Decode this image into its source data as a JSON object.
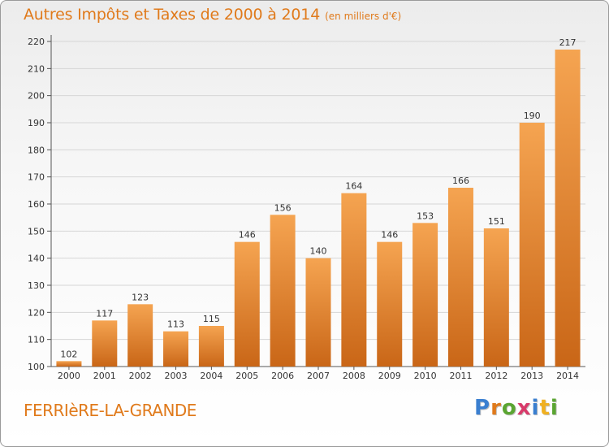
{
  "title": {
    "main": "Autres Impôts et Taxes de 2000 à 2014",
    "unit": "(en milliers d'€)"
  },
  "place_name": "FERRIèRE-LA-GRANDE",
  "logo": {
    "letters": [
      "P",
      "r",
      "o",
      "x",
      "i",
      "t",
      "i"
    ],
    "colors": [
      "#3a7fd0",
      "#e07a1b",
      "#5aa531",
      "#d83a6a",
      "#3a7fd0",
      "#f0b020",
      "#5aa531"
    ]
  },
  "colors": {
    "accent": "#e07a1b",
    "bar_top": "#f5a451",
    "bar_bottom": "#c96617",
    "grid": "#d6d6d6"
  },
  "chart_data": {
    "type": "bar",
    "title": "Autres Impôts et Taxes de 2000 à 2014",
    "subtitle": "(en milliers d'€)",
    "categories": [
      "2000",
      "2001",
      "2002",
      "2003",
      "2004",
      "2005",
      "2006",
      "2007",
      "2008",
      "2009",
      "2010",
      "2011",
      "2012",
      "2013",
      "2014"
    ],
    "values": [
      102,
      117,
      123,
      113,
      115,
      146,
      156,
      140,
      164,
      146,
      153,
      166,
      151,
      190,
      217
    ],
    "ylim": [
      100,
      220
    ],
    "yticks": [
      100,
      110,
      120,
      130,
      140,
      150,
      160,
      170,
      180,
      190,
      200,
      210,
      220
    ],
    "grid": true,
    "xlabel": "",
    "ylabel": ""
  }
}
